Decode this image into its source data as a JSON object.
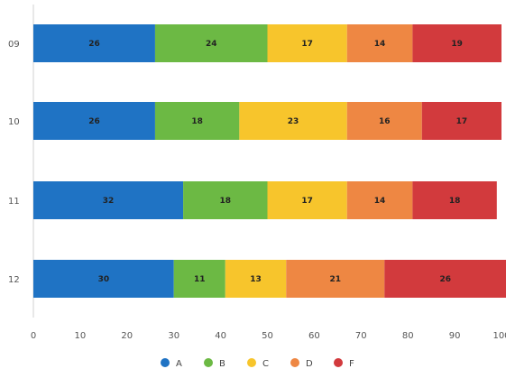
{
  "chart_data": {
    "type": "bar",
    "orientation": "horizontal",
    "stacked": true,
    "title": "",
    "xlabel": "",
    "ylabel": "",
    "categories": [
      "09",
      "10",
      "11",
      "12"
    ],
    "xlim": [
      0,
      100
    ],
    "x_ticks": [
      0,
      10,
      20,
      30,
      40,
      50,
      60,
      70,
      80,
      90,
      100
    ],
    "grid": false,
    "legend_position": "bottom",
    "series": [
      {
        "name": "A",
        "color": "#1f73c4",
        "values": [
          26,
          26,
          32,
          30
        ]
      },
      {
        "name": "B",
        "color": "#6cb944",
        "values": [
          24,
          18,
          18,
          11
        ]
      },
      {
        "name": "C",
        "color": "#f7c52c",
        "values": [
          17,
          23,
          17,
          13
        ]
      },
      {
        "name": "D",
        "color": "#ee8743",
        "values": [
          14,
          16,
          14,
          21
        ]
      },
      {
        "name": "F",
        "color": "#d23a3d",
        "values": [
          19,
          17,
          18,
          26
        ]
      }
    ]
  }
}
